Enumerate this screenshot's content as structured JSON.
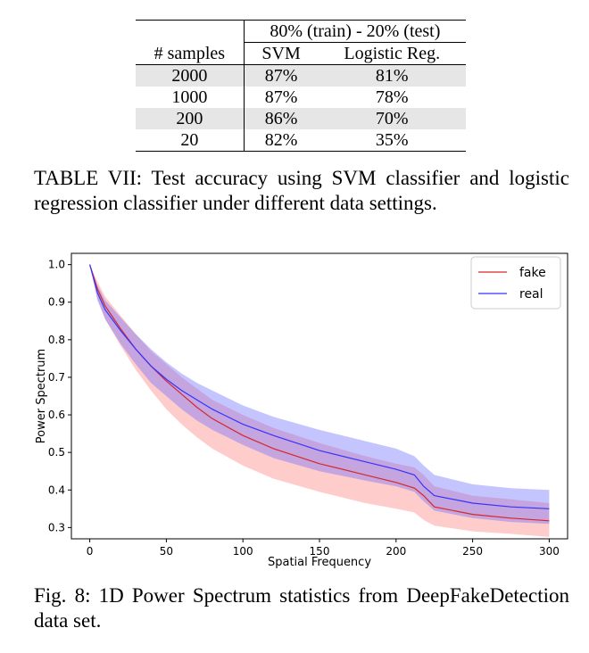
{
  "table": {
    "header_span": "80% (train) - 20% (test)",
    "col_samples": "# samples",
    "col_svm": "SVM",
    "col_lr": "Logistic Reg.",
    "rows": [
      {
        "samples": "2000",
        "svm": "87%",
        "lr": "81%"
      },
      {
        "samples": "1000",
        "svm": "87%",
        "lr": "78%"
      },
      {
        "samples": "200",
        "svm": "86%",
        "lr": "70%"
      },
      {
        "samples": "20",
        "svm": "82%",
        "lr": "35%"
      }
    ],
    "caption": "TABLE VII: Test accuracy using SVM classifier and logistic regression classifier under different data settings."
  },
  "figure": {
    "caption": "Fig. 8: 1D Power Spectrum statistics from DeepFakeDetection data set."
  },
  "chart_data": {
    "type": "area",
    "title": "",
    "xlabel": "Spatial Frequency",
    "ylabel": "Power Spectrum",
    "xlim": [
      -12,
      312
    ],
    "ylim": [
      0.27,
      1.03
    ],
    "xticks": [
      0,
      50,
      100,
      150,
      200,
      250,
      300
    ],
    "yticks": [
      0.3,
      0.4,
      0.5,
      0.6,
      0.7,
      0.8,
      0.9,
      1.0
    ],
    "grid": false,
    "legend_position": "top-right",
    "x": [
      0,
      5,
      10,
      20,
      30,
      40,
      50,
      60,
      70,
      80,
      100,
      120,
      150,
      180,
      200,
      212,
      218,
      225,
      250,
      275,
      300
    ],
    "series": [
      {
        "name": "fake",
        "color": "#d62728",
        "mean": [
          1.0,
          0.935,
          0.89,
          0.83,
          0.775,
          0.73,
          0.69,
          0.655,
          0.62,
          0.59,
          0.545,
          0.51,
          0.47,
          0.44,
          0.42,
          0.405,
          0.385,
          0.355,
          0.335,
          0.325,
          0.318
        ],
        "lower": [
          1.0,
          0.91,
          0.855,
          0.785,
          0.72,
          0.665,
          0.615,
          0.575,
          0.54,
          0.51,
          0.465,
          0.43,
          0.395,
          0.365,
          0.35,
          0.34,
          0.32,
          0.305,
          0.29,
          0.283,
          0.275
        ],
        "upper": [
          1.0,
          0.955,
          0.915,
          0.865,
          0.815,
          0.77,
          0.735,
          0.7,
          0.67,
          0.64,
          0.6,
          0.565,
          0.525,
          0.49,
          0.47,
          0.46,
          0.44,
          0.41,
          0.385,
          0.375,
          0.365
        ]
      },
      {
        "name": "real",
        "color": "#3333ff",
        "mean": [
          1.0,
          0.925,
          0.88,
          0.825,
          0.775,
          0.73,
          0.695,
          0.665,
          0.64,
          0.615,
          0.575,
          0.545,
          0.505,
          0.475,
          0.455,
          0.44,
          0.41,
          0.385,
          0.365,
          0.355,
          0.35
        ],
        "lower": [
          1.0,
          0.905,
          0.855,
          0.79,
          0.735,
          0.685,
          0.65,
          0.615,
          0.585,
          0.56,
          0.52,
          0.485,
          0.45,
          0.425,
          0.41,
          0.395,
          0.37,
          0.345,
          0.325,
          0.315,
          0.31
        ],
        "upper": [
          1.0,
          0.945,
          0.905,
          0.86,
          0.815,
          0.775,
          0.74,
          0.71,
          0.685,
          0.665,
          0.625,
          0.595,
          0.56,
          0.53,
          0.51,
          0.49,
          0.465,
          0.44,
          0.415,
          0.405,
          0.4
        ]
      }
    ]
  }
}
